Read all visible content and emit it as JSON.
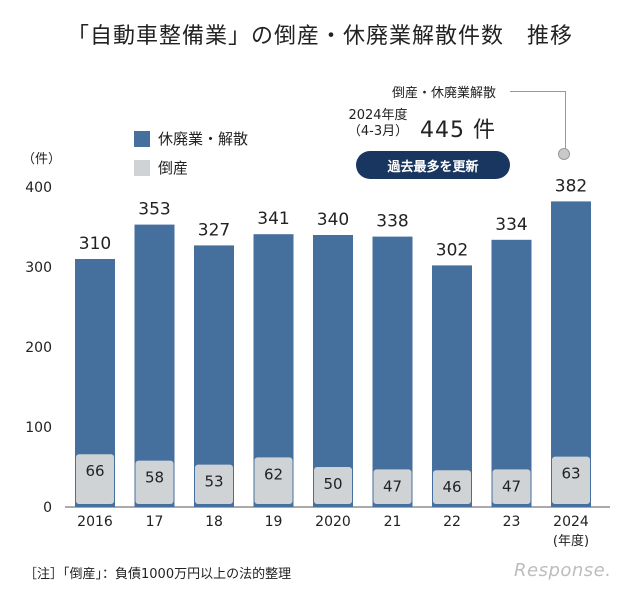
{
  "title": "「自動車整備業」の倒産・休廃業解散件数　推移",
  "unit_label": "（件）",
  "legend": [
    {
      "label": "休廃業・解散",
      "color": "#456f9d"
    },
    {
      "label": "倒産",
      "color": "#cfd3d6"
    }
  ],
  "callout": {
    "heading": "倒産・休廃業解散",
    "period_line1": "2024年度",
    "period_line2": "（4-3月）",
    "value": "445 件",
    "badge": "過去最多を更新"
  },
  "note": "［注］「倒産」：負債1000万円以上の法的整理",
  "brand": "Response.",
  "chart_data": {
    "type": "bar",
    "categories": [
      "2016",
      "17",
      "18",
      "19",
      "2020",
      "21",
      "22",
      "23",
      "2024"
    ],
    "x_sublabel": "(年度)",
    "series": [
      {
        "name": "休廃業・解散",
        "values": [
          310,
          353,
          327,
          341,
          340,
          338,
          302,
          334,
          382
        ],
        "color": "#456f9d"
      },
      {
        "name": "倒産",
        "values": [
          66,
          58,
          53,
          62,
          50,
          47,
          46,
          47,
          63
        ],
        "color": "#cfd3d6"
      }
    ],
    "yticks": [
      0,
      100,
      200,
      300,
      400
    ],
    "ylim": [
      0,
      400
    ],
    "grid": false,
    "legend_position": "top-left"
  }
}
